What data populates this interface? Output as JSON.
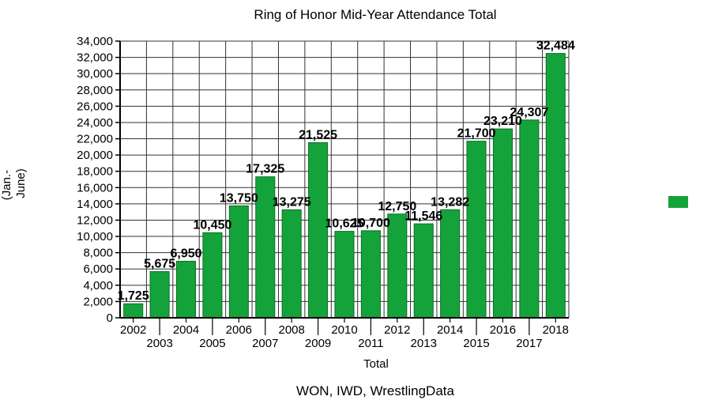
{
  "chart_data": {
    "type": "bar",
    "title": "Ring of Honor Mid-Year Attendance Total",
    "xlabel": "Total",
    "ylabel": "(Jan.- June)",
    "ylabel_lines": [
      "(Jan.-",
      "June)"
    ],
    "categories": [
      "2002",
      "2003",
      "2004",
      "2005",
      "2006",
      "2007",
      "2008",
      "2009",
      "2010",
      "2011",
      "2012",
      "2013",
      "2014",
      "2015",
      "2016",
      "2017",
      "2018"
    ],
    "values": [
      1725,
      5675,
      6950,
      10450,
      13750,
      17325,
      13275,
      21525,
      10625,
      10700,
      12750,
      11546,
      13282,
      21700,
      23210,
      24307,
      32484
    ],
    "data_labels": [
      "1,725",
      "5,675",
      "6,950",
      "10,450",
      "13,750",
      "17,325",
      "13,275",
      "21,525",
      "10,625",
      "10,700",
      "12,750",
      "11,546",
      "13,282",
      "21,700",
      "23,210",
      "24,307",
      "32,484"
    ],
    "ylim": [
      0,
      34000
    ],
    "yticks": [
      0,
      2000,
      4000,
      6000,
      8000,
      10000,
      12000,
      14000,
      16000,
      18000,
      20000,
      22000,
      24000,
      26000,
      28000,
      30000,
      32000,
      34000
    ],
    "ytick_labels": [
      "0",
      "2,000",
      "4,000",
      "6,000",
      "8,000",
      "10,000",
      "12,000",
      "14,000",
      "16,000",
      "18,000",
      "20,000",
      "22,000",
      "24,000",
      "26,000",
      "28,000",
      "30,000",
      "32,000",
      "34,000"
    ],
    "grid": true,
    "legend": "right",
    "bar_color": "#14a33a",
    "bar_edge_color": "#0b6e24",
    "source": "WON, IWD, WrestlingData"
  }
}
